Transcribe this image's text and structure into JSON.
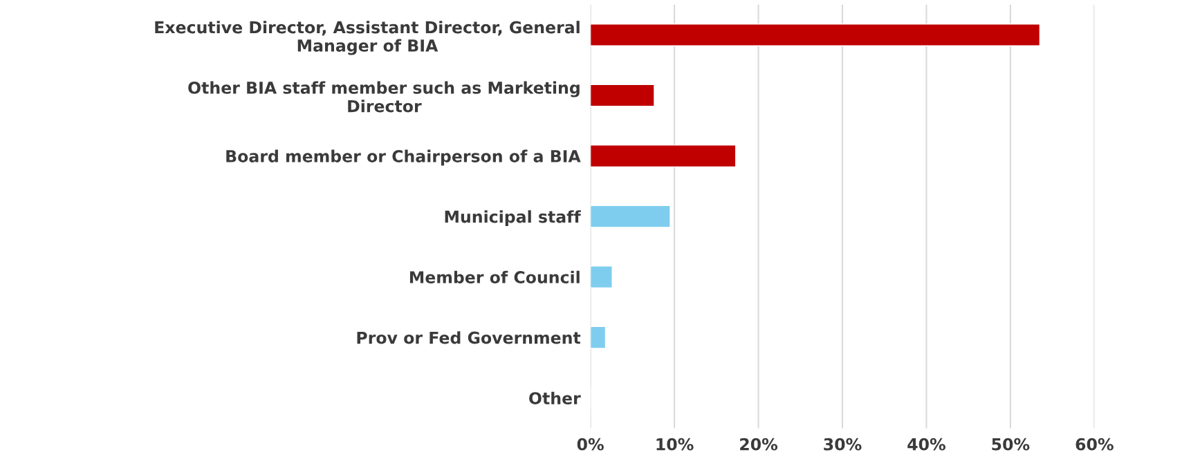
{
  "chart_data": {
    "type": "bar",
    "orientation": "horizontal",
    "categories": [
      "Executive Director, Assistant Director, General\nManager of BIA",
      "Other BIA staff member such as Marketing\nDirector",
      "Board member or Chairperson of a BIA",
      "Municipal staff",
      "Member of Council",
      "Prov or Fed Government",
      "Other"
    ],
    "values": [
      53.5,
      7.6,
      17.3,
      9.5,
      2.6,
      1.8,
      0
    ],
    "colors": [
      "#c00000",
      "#c00000",
      "#c00000",
      "#7fcdee",
      "#7fcdee",
      "#7fcdee",
      null
    ],
    "xlim": [
      0,
      60
    ],
    "xticks": [
      {
        "value": 0,
        "label": "0%"
      },
      {
        "value": 10,
        "label": "10%"
      },
      {
        "value": 20,
        "label": "20%"
      },
      {
        "value": 30,
        "label": "30%"
      },
      {
        "value": 40,
        "label": "40%"
      },
      {
        "value": 50,
        "label": "50%"
      },
      {
        "value": 60,
        "label": "60%"
      }
    ],
    "grid": "x",
    "legend": false
  }
}
